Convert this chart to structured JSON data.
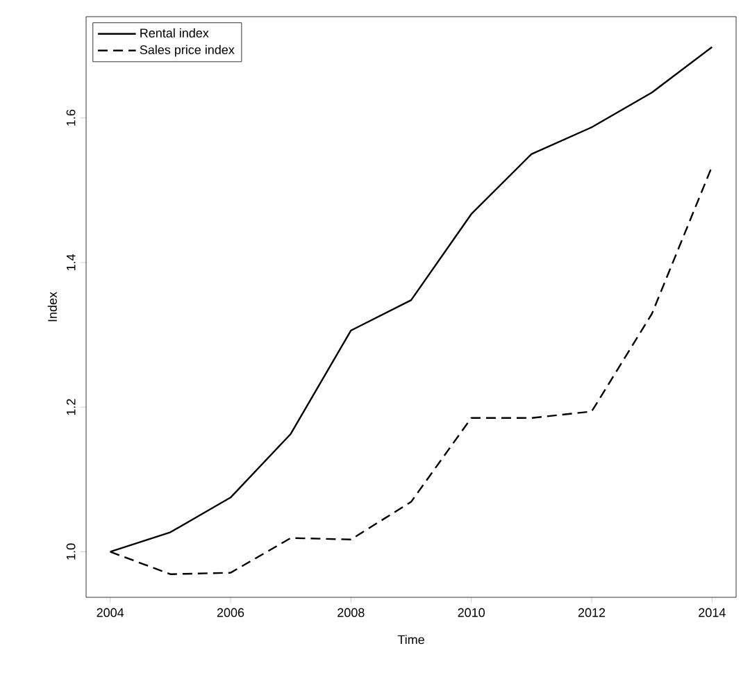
{
  "chart_data": {
    "type": "line",
    "xlabel": "Time",
    "ylabel": "Index",
    "x": [
      2004,
      2005,
      2006,
      2007,
      2008,
      2009,
      2010,
      2011,
      2012,
      2013,
      2014
    ],
    "series": [
      {
        "name": "Rental index",
        "color": "#000000",
        "line_style": "solid",
        "values": [
          1.0,
          1.027,
          1.075,
          1.163,
          1.306,
          1.348,
          1.467,
          1.55,
          1.587,
          1.635,
          1.698
        ]
      },
      {
        "name": "Sales price index",
        "color": "#000000",
        "line_style": "dashed",
        "values": [
          1.0,
          0.969,
          0.971,
          1.019,
          1.017,
          1.069,
          1.185,
          1.185,
          1.194,
          1.329,
          1.533
        ]
      }
    ],
    "xlim": [
      2003.6,
      2014.4
    ],
    "ylim": [
      0.937,
      1.74
    ],
    "xticks": [
      2004,
      2006,
      2008,
      2010,
      2012,
      2014
    ],
    "yticks": [
      {
        "value": 1.0,
        "label": "1.0"
      },
      {
        "value": 1.2,
        "label": "1.2"
      },
      {
        "value": 1.4,
        "label": "1.4"
      },
      {
        "value": 1.6,
        "label": "1.6"
      }
    ],
    "legend": "top left",
    "grid": false,
    "marker": "none"
  }
}
